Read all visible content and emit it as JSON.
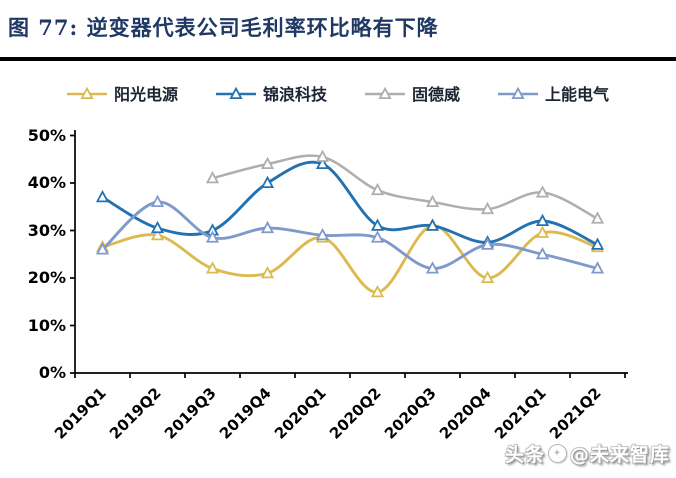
{
  "title": {
    "text": "图 77:  逆变器代表公司毛利率环比略有下降"
  },
  "watermark": {
    "prefix": "头条",
    "badge_glyph": "✦",
    "handle": "@未来智库"
  },
  "chart_data": {
    "type": "line",
    "title": "逆变器代表公司毛利率环比略有下降",
    "categories": [
      "2019Q1",
      "2019Q2",
      "2019Q3",
      "2019Q4",
      "2020Q1",
      "2020Q2",
      "2020Q3",
      "2020Q4",
      "2021Q1",
      "2021Q2"
    ],
    "series": [
      {
        "name": "阳光电源",
        "color": "#ddba4f",
        "values": [
          26.5,
          29,
          22,
          21,
          28.5,
          17,
          31,
          20,
          29.5,
          26.5
        ]
      },
      {
        "name": "锦浪科技",
        "color": "#2272b2",
        "values": [
          37,
          30.5,
          30,
          40,
          44,
          31,
          31,
          27.5,
          32,
          27
        ]
      },
      {
        "name": "固德威",
        "color": "#aeaeae",
        "values": [
          null,
          null,
          41,
          44,
          45.5,
          38.5,
          36,
          34.5,
          38,
          32.5
        ]
      },
      {
        "name": "上能电气",
        "color": "#7e99cc",
        "values": [
          26,
          36,
          28.5,
          30.5,
          29,
          28.5,
          22,
          27,
          25,
          22
        ]
      }
    ],
    "y_ticks": [
      "50%",
      "40%",
      "30%",
      "20%",
      "10%",
      "0%"
    ],
    "ylim": [
      0,
      50
    ],
    "xlabel": "",
    "ylabel": "",
    "unit": "percent",
    "grid": false,
    "marker": "open-triangle",
    "line_style": "smooth",
    "legend_position": "top",
    "axis_color": "#000000",
    "background": "#ffffff"
  }
}
